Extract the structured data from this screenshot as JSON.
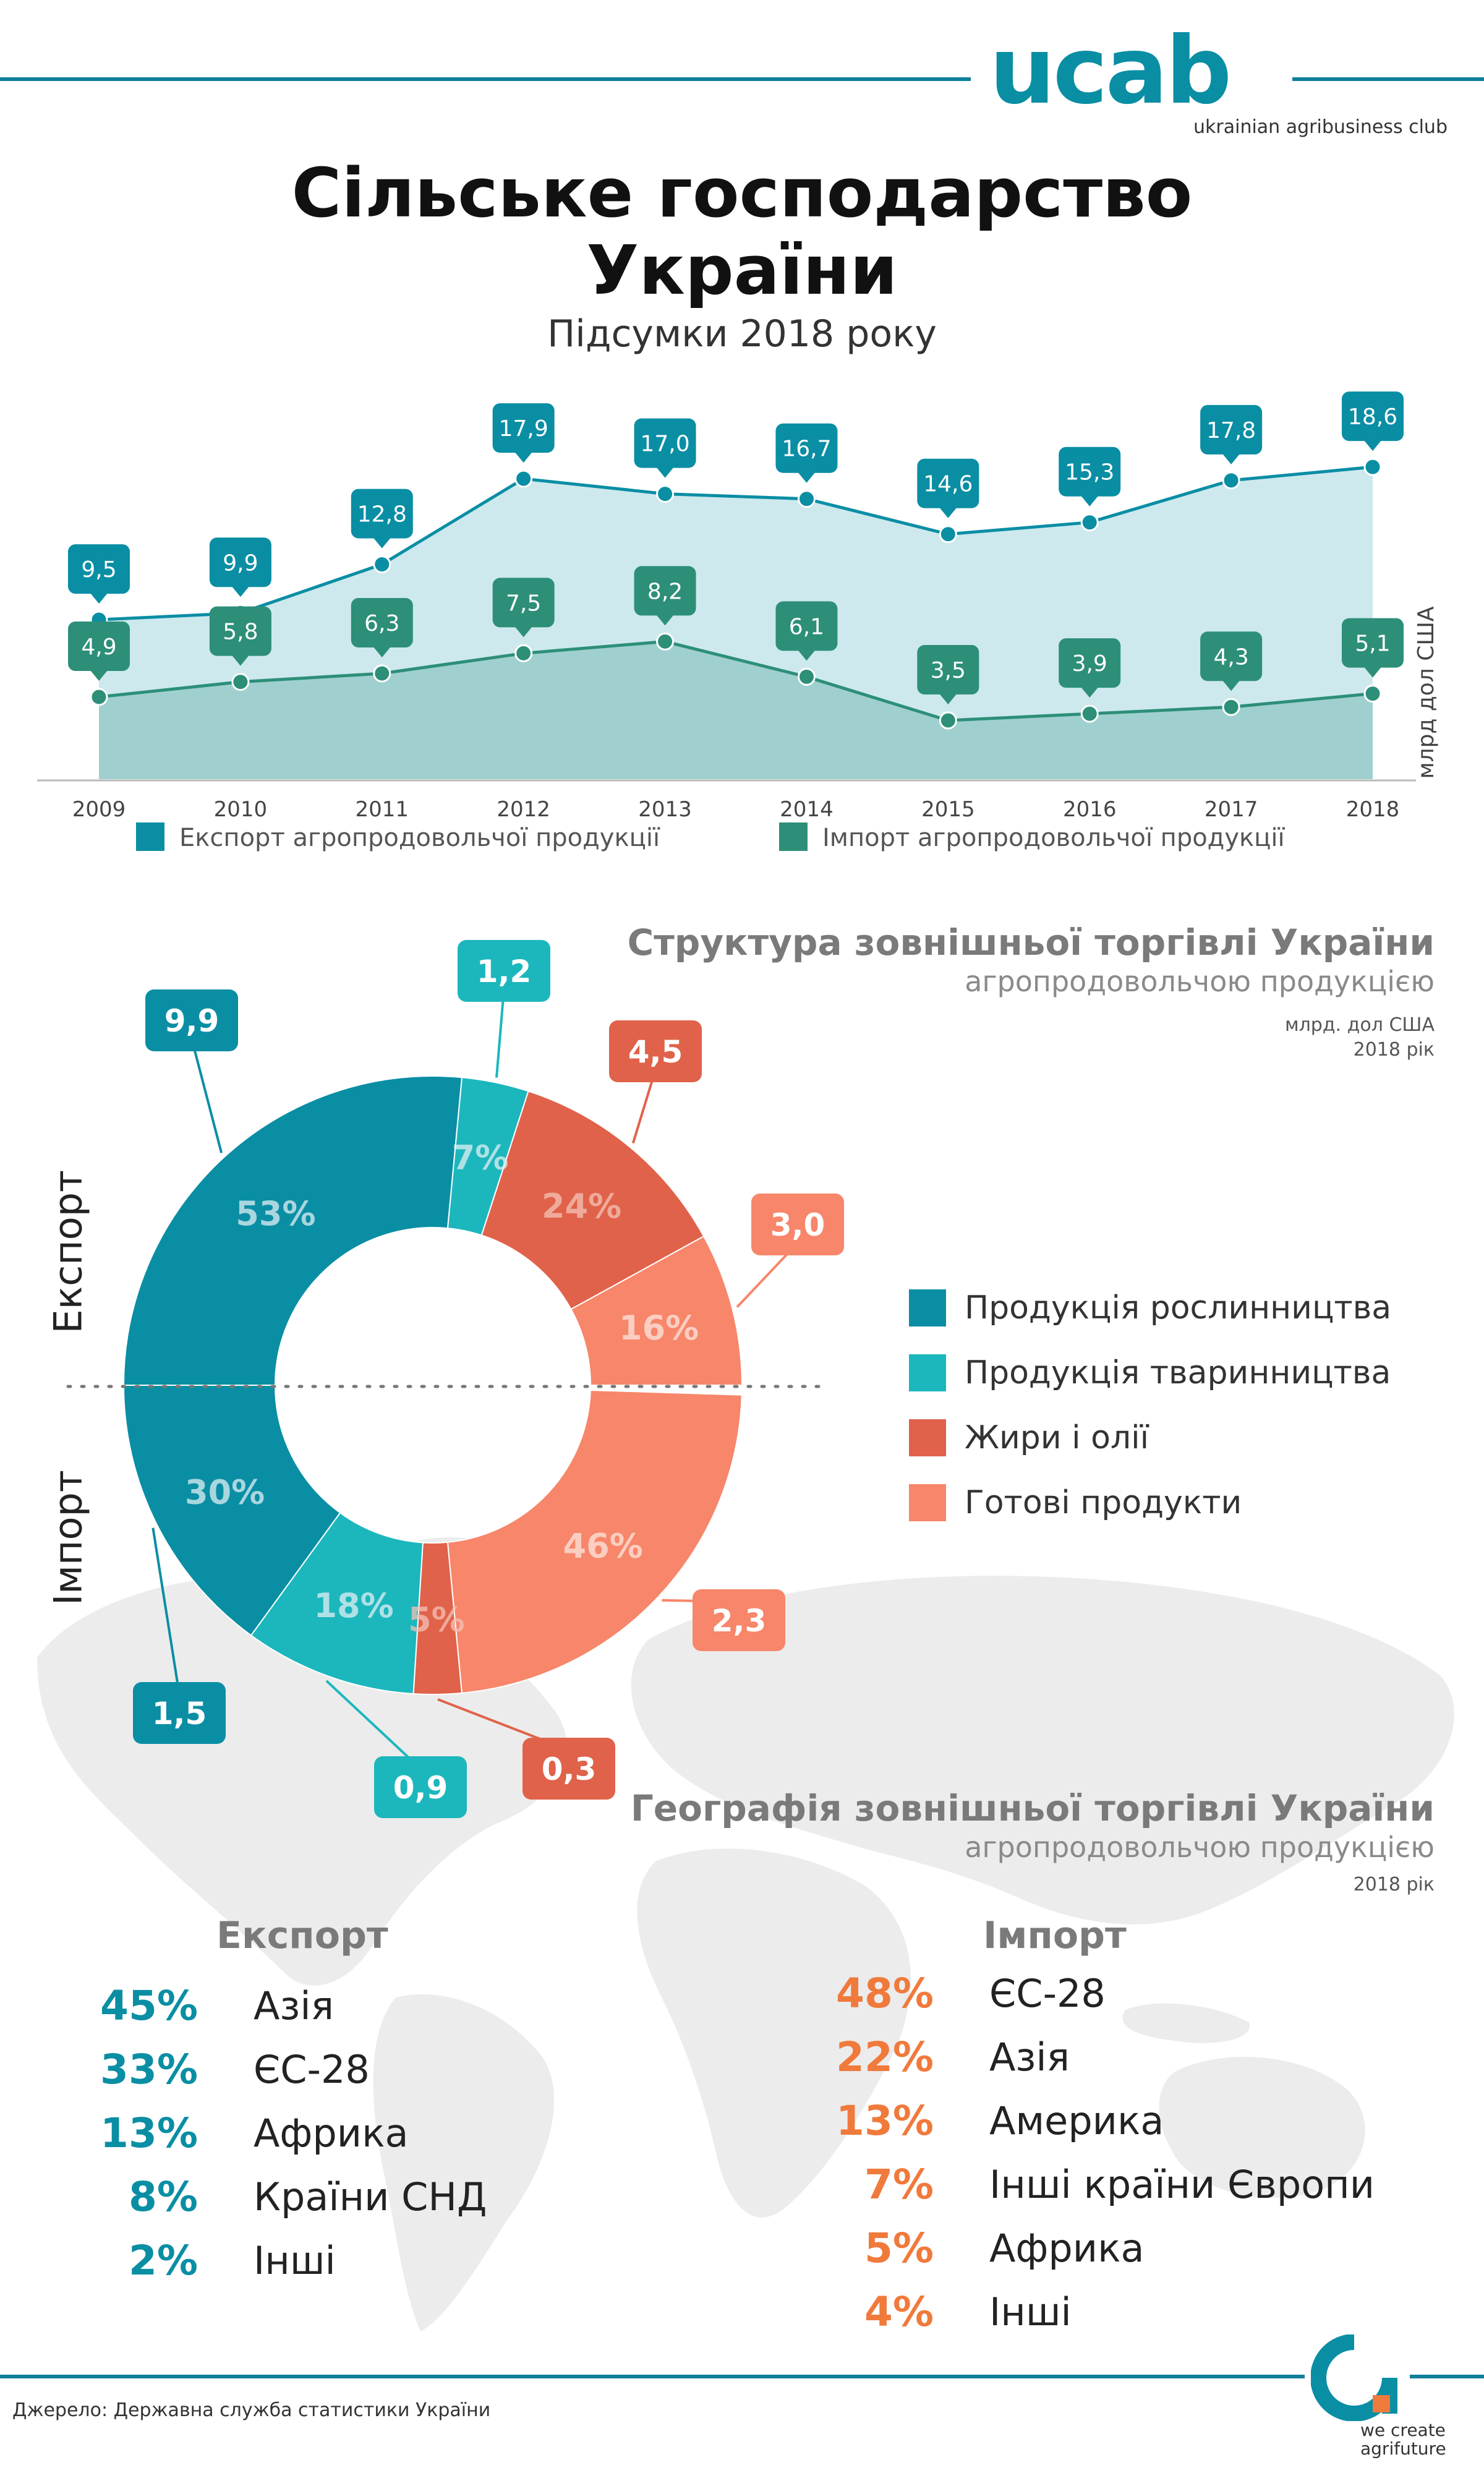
{
  "header": {
    "logo_text": "ucab",
    "logo_subtitle": "ukrainian agribusiness club",
    "title_line1": "Сільське господарство",
    "title_line2": "України",
    "subtitle": "Підсумки 2018 року"
  },
  "colors": {
    "teal_dark": "#0a8ea4",
    "green_teal": "#2d8f78",
    "export_area": "#cde9ee",
    "import_area": "#9fd0cf",
    "plant": "#0a8ea4",
    "animal": "#1bb7bd",
    "fats": "#e0624a",
    "ready": "#f7866a",
    "orange_text": "#f07a3c"
  },
  "chart_data": [
    {
      "type": "area",
      "x": [
        "2009",
        "2010",
        "2011",
        "2012",
        "2013",
        "2014",
        "2015",
        "2016",
        "2017",
        "2018"
      ],
      "series": [
        {
          "name": "Експорт агропродовольчої продукції",
          "values": [
            9.5,
            9.9,
            12.8,
            17.9,
            17.0,
            16.7,
            14.6,
            15.3,
            17.8,
            18.6
          ],
          "labels": [
            "9,5",
            "9,9",
            "12,8",
            "17,9",
            "17,0",
            "16,7",
            "14,6",
            "15,3",
            "17,8",
            "18,6"
          ],
          "color": "#0a8ea4"
        },
        {
          "name": "Імпорт агропродовольчої продукції",
          "values": [
            4.9,
            5.8,
            6.3,
            7.5,
            8.2,
            6.1,
            3.5,
            3.9,
            4.3,
            5.1
          ],
          "labels": [
            "4,9",
            "5,8",
            "6,3",
            "7,5",
            "8,2",
            "6,1",
            "3,5",
            "3,9",
            "4,3",
            "5,1"
          ],
          "color": "#2d8f78"
        }
      ],
      "ylabel": "млрд дол США",
      "ylim": [
        0,
        21
      ],
      "legend": "bottom"
    },
    {
      "type": "pie",
      "title": "Структура зовнішньої торгівлі України",
      "subtitle": "агропродовольчою продукцією",
      "unit_note": "млрд. дол США",
      "year_note": "2018 рік",
      "export_label": "Експорт",
      "import_label": "Імпорт",
      "categories": [
        "Продукція рослинництва",
        "Продукція тваринництва",
        "Жири і олії",
        "Готові продукти"
      ],
      "export": {
        "percent": [
          53,
          7,
          24,
          16
        ],
        "pct_labels": [
          "53%",
          "7%",
          "24%",
          "16%"
        ],
        "values": [
          "9,9",
          "1,2",
          "4,5",
          "3,0"
        ]
      },
      "import": {
        "percent": [
          30,
          18,
          5,
          46
        ],
        "pct_labels": [
          "30%",
          "18%",
          "5%",
          "46%"
        ],
        "values": [
          "1,5",
          "0,9",
          "0,3",
          "2,3"
        ]
      }
    }
  ],
  "geo": {
    "title": "Географія зовнішньої торгівлі України",
    "subtitle": "агропродовольчою продукцією",
    "year": "2018 рік",
    "export_title": "Експорт",
    "import_title": "Імпорт",
    "export": [
      {
        "pct": "45%",
        "name": "Азія"
      },
      {
        "pct": "33%",
        "name": "ЄС-28"
      },
      {
        "pct": "13%",
        "name": "Африка"
      },
      {
        "pct": "8%",
        "name": "Країни СНД"
      },
      {
        "pct": "2%",
        "name": "Інші"
      }
    ],
    "import": [
      {
        "pct": "48%",
        "name": "ЄС-28"
      },
      {
        "pct": "22%",
        "name": "Азія"
      },
      {
        "pct": "13%",
        "name": "Америка"
      },
      {
        "pct": "7%",
        "name": "Інші країни Європи"
      },
      {
        "pct": "5%",
        "name": "Африка"
      },
      {
        "pct": "4%",
        "name": "Інші"
      }
    ]
  },
  "footer": {
    "source": "Джерело: Державна служба статистики України",
    "tagline_1": "we create",
    "tagline_2": "agrifuture"
  }
}
